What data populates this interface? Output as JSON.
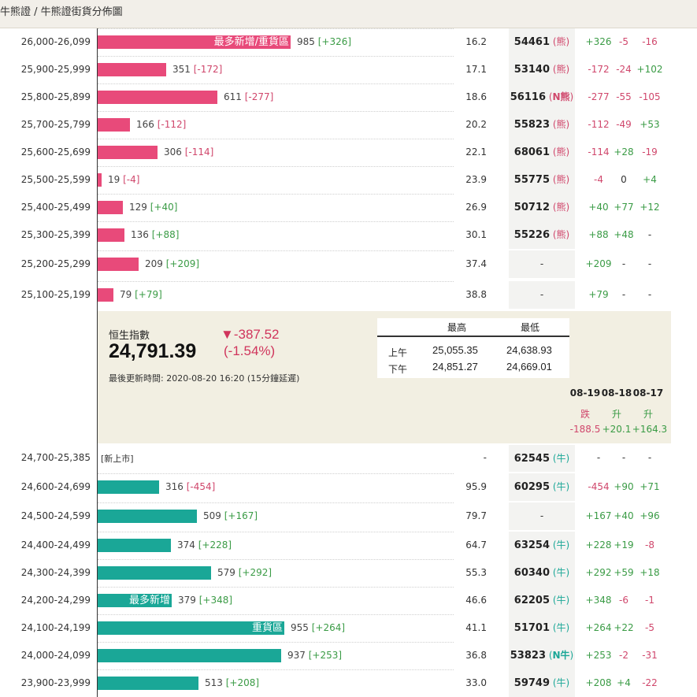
{
  "breadcrumb": "牛熊證 / 牛熊證街貨分佈圖",
  "bear_rows": [
    {
      "range": "26,000-26,099",
      "count": "985",
      "delta": "[+326]",
      "delta_sign": "pos",
      "bar_pct": 0.556,
      "inlabel": "最多新增/重貨區",
      "pct": "16.2",
      "code": "54461",
      "kind": "熊",
      "d1": "+326",
      "d1s": "pos",
      "d2": "-5",
      "d2s": "neg",
      "d3": "-16",
      "d3s": "neg"
    },
    {
      "range": "25,900-25,999",
      "count": "351",
      "delta": "[-172]",
      "delta_sign": "neg",
      "bar_pct": 0.198,
      "inlabel": "",
      "pct": "17.1",
      "code": "53140",
      "kind": "熊",
      "d1": "-172",
      "d1s": "neg",
      "d2": "-24",
      "d2s": "neg",
      "d3": "+102",
      "d3s": "pos"
    },
    {
      "range": "25,800-25,899",
      "count": "611",
      "delta": "[-277]",
      "delta_sign": "neg",
      "bar_pct": 0.345,
      "inlabel": "",
      "pct": "18.6",
      "code": "56116",
      "kind": "N熊",
      "d1": "-277",
      "d1s": "neg",
      "d2": "-55",
      "d2s": "neg",
      "d3": "-105",
      "d3s": "neg"
    },
    {
      "range": "25,700-25,799",
      "count": "166",
      "delta": "[-112]",
      "delta_sign": "neg",
      "bar_pct": 0.094,
      "inlabel": "",
      "pct": "20.2",
      "code": "55823",
      "kind": "熊",
      "d1": "-112",
      "d1s": "neg",
      "d2": "-49",
      "d2s": "neg",
      "d3": "+53",
      "d3s": "pos"
    },
    {
      "range": "25,600-25,699",
      "count": "306",
      "delta": "[-114]",
      "delta_sign": "neg",
      "bar_pct": 0.173,
      "inlabel": "",
      "pct": "22.1",
      "code": "68061",
      "kind": "熊",
      "d1": "-114",
      "d1s": "neg",
      "d2": "+28",
      "d2s": "pos",
      "d3": "-19",
      "d3s": "neg"
    },
    {
      "range": "25,500-25,599",
      "count": "19",
      "delta": "[-4]",
      "delta_sign": "neg",
      "bar_pct": 0.011,
      "inlabel": "",
      "pct": "23.9",
      "code": "55775",
      "kind": "熊",
      "d1": "-4",
      "d1s": "neg",
      "d2": "0",
      "d2s": "neu",
      "d3": "+4",
      "d3s": "pos"
    },
    {
      "range": "25,400-25,499",
      "count": "129",
      "delta": "[+40]",
      "delta_sign": "pos",
      "bar_pct": 0.073,
      "inlabel": "",
      "pct": "26.9",
      "code": "50712",
      "kind": "熊",
      "d1": "+40",
      "d1s": "pos",
      "d2": "+77",
      "d2s": "pos",
      "d3": "+12",
      "d3s": "pos"
    },
    {
      "range": "25,300-25,399",
      "count": "136",
      "delta": "[+88]",
      "delta_sign": "pos",
      "bar_pct": 0.077,
      "inlabel": "",
      "pct": "30.1",
      "code": "55226",
      "kind": "熊",
      "d1": "+88",
      "d1s": "pos",
      "d2": "+48",
      "d2s": "pos",
      "d3": "-",
      "d3s": "neu"
    },
    {
      "range": "25,200-25,299",
      "count": "209",
      "delta": "[+209]",
      "delta_sign": "pos",
      "bar_pct": 0.118,
      "inlabel": "",
      "pct": "37.4",
      "code": "",
      "kind": "",
      "d1": "+209",
      "d1s": "pos",
      "d2": "-",
      "d2s": "neu",
      "d3": "-",
      "d3s": "neu"
    },
    {
      "range": "25,100-25,199",
      "count": "79",
      "delta": "[+79]",
      "delta_sign": "pos",
      "bar_pct": 0.045,
      "inlabel": "",
      "pct": "38.8",
      "code": "",
      "kind": "",
      "d1": "+79",
      "d1s": "pos",
      "d2": "-",
      "d2s": "neu",
      "d3": "-",
      "d3s": "neu"
    }
  ],
  "index_panel": {
    "name": "恒生指數",
    "value": "24,791.39",
    "change": "▼-387.52",
    "change_pct": "(-1.54%)",
    "update_time": "最後更新時間: 2020-08-20 16:20 (15分鐘延遲)",
    "hl_headers": [
      "最高",
      "最低"
    ],
    "am_label": "上午",
    "am_high": "25,055.35",
    "am_low": "24,638.93",
    "pm_label": "下午",
    "pm_high": "24,851.27",
    "pm_low": "24,669.01",
    "days": [
      {
        "date": "08-19",
        "dir": "跌",
        "dirs": "neg",
        "val": "-188.5"
      },
      {
        "date": "08-18",
        "dir": "升",
        "dirs": "pos",
        "val": "+20.1"
      },
      {
        "date": "08-17",
        "dir": "升",
        "dirs": "pos",
        "val": "+164.3"
      }
    ]
  },
  "new_listing_row": {
    "range": "24,700-25,385",
    "label": "[新上市]",
    "pct": "-",
    "code": "62545",
    "kind": "牛",
    "d1": "-",
    "d2": "-",
    "d3": "-"
  },
  "bull_rows": [
    {
      "range": "24,600-24,699",
      "count": "316",
      "delta": "[-454]",
      "delta_sign": "neg",
      "bar_pct": 0.178,
      "inlabel": "",
      "pct": "95.9",
      "code": "60295",
      "kind": "牛",
      "d1": "-454",
      "d1s": "neg",
      "d2": "+90",
      "d2s": "pos",
      "d3": "+71",
      "d3s": "pos"
    },
    {
      "range": "24,500-24,599",
      "count": "509",
      "delta": "[+167]",
      "delta_sign": "pos",
      "bar_pct": 0.287,
      "inlabel": "",
      "pct": "79.7",
      "code": "",
      "kind": "",
      "d1": "+167",
      "d1s": "pos",
      "d2": "+40",
      "d2s": "pos",
      "d3": "+96",
      "d3s": "pos"
    },
    {
      "range": "24,400-24,499",
      "count": "374",
      "delta": "[+228]",
      "delta_sign": "pos",
      "bar_pct": 0.211,
      "inlabel": "",
      "pct": "64.7",
      "code": "63254",
      "kind": "牛",
      "d1": "+228",
      "d1s": "pos",
      "d2": "+19",
      "d2s": "pos",
      "d3": "-8",
      "d3s": "neg"
    },
    {
      "range": "24,300-24,399",
      "count": "579",
      "delta": "[+292]",
      "delta_sign": "pos",
      "bar_pct": 0.327,
      "inlabel": "",
      "pct": "55.3",
      "code": "60340",
      "kind": "牛",
      "d1": "+292",
      "d1s": "pos",
      "d2": "+59",
      "d2s": "pos",
      "d3": "+18",
      "d3s": "pos"
    },
    {
      "range": "24,200-24,299",
      "count": "379",
      "delta": "[+348]",
      "delta_sign": "pos",
      "bar_pct": 0.214,
      "inlabel": "最多新增",
      "pct": "46.6",
      "code": "62205",
      "kind": "牛",
      "d1": "+348",
      "d1s": "pos",
      "d2": "-6",
      "d2s": "neg",
      "d3": "-1",
      "d3s": "neg"
    },
    {
      "range": "24,100-24,199",
      "count": "955",
      "delta": "[+264]",
      "delta_sign": "pos",
      "bar_pct": 0.539,
      "inlabel": "重貨區",
      "pct": "41.1",
      "code": "51701",
      "kind": "牛",
      "d1": "+264",
      "d1s": "pos",
      "d2": "+22",
      "d2s": "pos",
      "d3": "-5",
      "d3s": "neg"
    },
    {
      "range": "24,000-24,099",
      "count": "937",
      "delta": "[+253]",
      "delta_sign": "pos",
      "bar_pct": 0.529,
      "inlabel": "",
      "pct": "36.8",
      "code": "53823",
      "kind": "N牛",
      "d1": "+253",
      "d1s": "pos",
      "d2": "-2",
      "d2s": "neg",
      "d3": "-31",
      "d3s": "neg"
    },
    {
      "range": "23,900-23,999",
      "count": "513",
      "delta": "[+208]",
      "delta_sign": "pos",
      "bar_pct": 0.29,
      "inlabel": "",
      "pct": "33.0",
      "code": "59749",
      "kind": "牛",
      "d1": "+208",
      "d1s": "pos",
      "d2": "+4",
      "d2s": "pos",
      "d3": "-22",
      "d3s": "neg"
    }
  ],
  "colors": {
    "bear": "#e84a7a",
    "bull": "#1aa797",
    "neg": "#d0476c",
    "pos": "#3a9b45"
  }
}
